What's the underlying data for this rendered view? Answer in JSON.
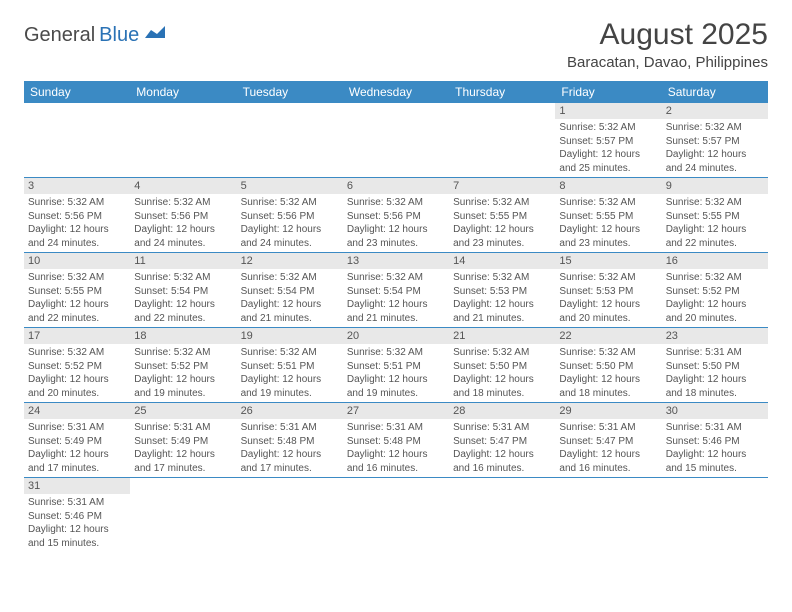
{
  "logo": {
    "part1": "General",
    "part2": "Blue"
  },
  "title": "August 2025",
  "location": "Baracatan, Davao, Philippines",
  "columns": [
    "Sunday",
    "Monday",
    "Tuesday",
    "Wednesday",
    "Thursday",
    "Friday",
    "Saturday"
  ],
  "colors": {
    "header_bg": "#3b8ac4",
    "header_fg": "#ffffff",
    "daynum_bg": "#e8e8e8",
    "border": "#3b8ac4",
    "text": "#555555",
    "logo_accent": "#2a72b5"
  },
  "weeks": [
    [
      null,
      null,
      null,
      null,
      null,
      {
        "n": "1",
        "sunrise": "5:32 AM",
        "sunset": "5:57 PM",
        "daylight": "12 hours and 25 minutes."
      },
      {
        "n": "2",
        "sunrise": "5:32 AM",
        "sunset": "5:57 PM",
        "daylight": "12 hours and 24 minutes."
      }
    ],
    [
      {
        "n": "3",
        "sunrise": "5:32 AM",
        "sunset": "5:56 PM",
        "daylight": "12 hours and 24 minutes."
      },
      {
        "n": "4",
        "sunrise": "5:32 AM",
        "sunset": "5:56 PM",
        "daylight": "12 hours and 24 minutes."
      },
      {
        "n": "5",
        "sunrise": "5:32 AM",
        "sunset": "5:56 PM",
        "daylight": "12 hours and 24 minutes."
      },
      {
        "n": "6",
        "sunrise": "5:32 AM",
        "sunset": "5:56 PM",
        "daylight": "12 hours and 23 minutes."
      },
      {
        "n": "7",
        "sunrise": "5:32 AM",
        "sunset": "5:55 PM",
        "daylight": "12 hours and 23 minutes."
      },
      {
        "n": "8",
        "sunrise": "5:32 AM",
        "sunset": "5:55 PM",
        "daylight": "12 hours and 23 minutes."
      },
      {
        "n": "9",
        "sunrise": "5:32 AM",
        "sunset": "5:55 PM",
        "daylight": "12 hours and 22 minutes."
      }
    ],
    [
      {
        "n": "10",
        "sunrise": "5:32 AM",
        "sunset": "5:55 PM",
        "daylight": "12 hours and 22 minutes."
      },
      {
        "n": "11",
        "sunrise": "5:32 AM",
        "sunset": "5:54 PM",
        "daylight": "12 hours and 22 minutes."
      },
      {
        "n": "12",
        "sunrise": "5:32 AM",
        "sunset": "5:54 PM",
        "daylight": "12 hours and 21 minutes."
      },
      {
        "n": "13",
        "sunrise": "5:32 AM",
        "sunset": "5:54 PM",
        "daylight": "12 hours and 21 minutes."
      },
      {
        "n": "14",
        "sunrise": "5:32 AM",
        "sunset": "5:53 PM",
        "daylight": "12 hours and 21 minutes."
      },
      {
        "n": "15",
        "sunrise": "5:32 AM",
        "sunset": "5:53 PM",
        "daylight": "12 hours and 20 minutes."
      },
      {
        "n": "16",
        "sunrise": "5:32 AM",
        "sunset": "5:52 PM",
        "daylight": "12 hours and 20 minutes."
      }
    ],
    [
      {
        "n": "17",
        "sunrise": "5:32 AM",
        "sunset": "5:52 PM",
        "daylight": "12 hours and 20 minutes."
      },
      {
        "n": "18",
        "sunrise": "5:32 AM",
        "sunset": "5:52 PM",
        "daylight": "12 hours and 19 minutes."
      },
      {
        "n": "19",
        "sunrise": "5:32 AM",
        "sunset": "5:51 PM",
        "daylight": "12 hours and 19 minutes."
      },
      {
        "n": "20",
        "sunrise": "5:32 AM",
        "sunset": "5:51 PM",
        "daylight": "12 hours and 19 minutes."
      },
      {
        "n": "21",
        "sunrise": "5:32 AM",
        "sunset": "5:50 PM",
        "daylight": "12 hours and 18 minutes."
      },
      {
        "n": "22",
        "sunrise": "5:32 AM",
        "sunset": "5:50 PM",
        "daylight": "12 hours and 18 minutes."
      },
      {
        "n": "23",
        "sunrise": "5:31 AM",
        "sunset": "5:50 PM",
        "daylight": "12 hours and 18 minutes."
      }
    ],
    [
      {
        "n": "24",
        "sunrise": "5:31 AM",
        "sunset": "5:49 PM",
        "daylight": "12 hours and 17 minutes."
      },
      {
        "n": "25",
        "sunrise": "5:31 AM",
        "sunset": "5:49 PM",
        "daylight": "12 hours and 17 minutes."
      },
      {
        "n": "26",
        "sunrise": "5:31 AM",
        "sunset": "5:48 PM",
        "daylight": "12 hours and 17 minutes."
      },
      {
        "n": "27",
        "sunrise": "5:31 AM",
        "sunset": "5:48 PM",
        "daylight": "12 hours and 16 minutes."
      },
      {
        "n": "28",
        "sunrise": "5:31 AM",
        "sunset": "5:47 PM",
        "daylight": "12 hours and 16 minutes."
      },
      {
        "n": "29",
        "sunrise": "5:31 AM",
        "sunset": "5:47 PM",
        "daylight": "12 hours and 16 minutes."
      },
      {
        "n": "30",
        "sunrise": "5:31 AM",
        "sunset": "5:46 PM",
        "daylight": "12 hours and 15 minutes."
      }
    ],
    [
      {
        "n": "31",
        "sunrise": "5:31 AM",
        "sunset": "5:46 PM",
        "daylight": "12 hours and 15 minutes."
      },
      null,
      null,
      null,
      null,
      null,
      null
    ]
  ],
  "labels": {
    "sunrise": "Sunrise:",
    "sunset": "Sunset:",
    "daylight": "Daylight:"
  }
}
